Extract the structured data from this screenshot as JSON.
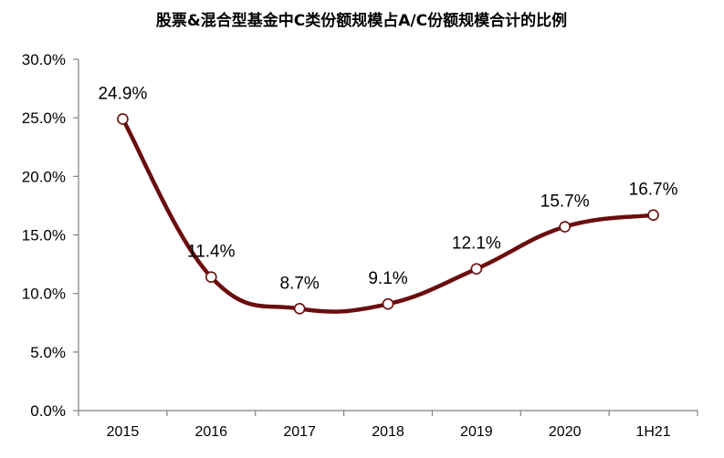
{
  "chart_data": {
    "type": "line",
    "title": "股票&混合型基金中C类份额规模占A/C份额规模合计的比例",
    "categories": [
      "2015",
      "2016",
      "2017",
      "2018",
      "2019",
      "2020",
      "1H21"
    ],
    "series": [
      {
        "values": [
          24.9,
          11.4,
          8.7,
          9.1,
          12.1,
          15.7,
          16.7
        ],
        "labels": [
          "24.9%",
          "11.4%",
          "8.7%",
          "9.1%",
          "12.1%",
          "15.7%",
          "16.7%"
        ],
        "color": "#6B0D0D"
      }
    ],
    "y_ticks": [
      "0.0%",
      "5.0%",
      "10.0%",
      "15.0%",
      "20.0%",
      "25.0%",
      "30.0%"
    ],
    "ylim": [
      0,
      30
    ],
    "grid": false,
    "legend": "none",
    "smooth": true,
    "marker_fill": "#ffffff"
  }
}
